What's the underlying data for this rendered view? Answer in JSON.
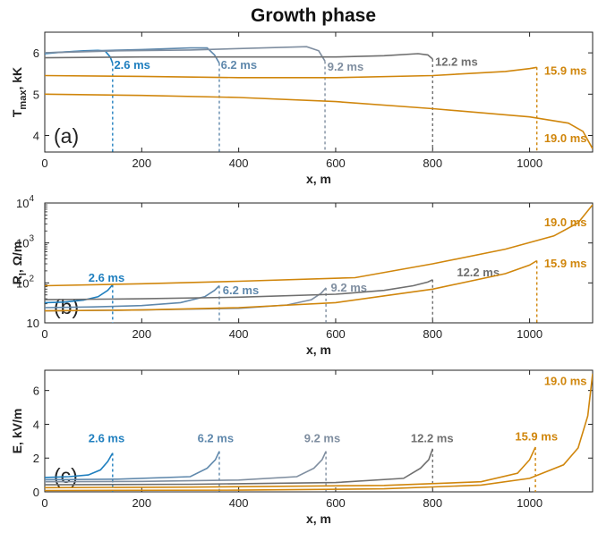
{
  "title": "Growth phase",
  "colors": {
    "blue": "#1f7fbf",
    "steel": "#5f88ac",
    "slate": "#7f8ea0",
    "gray": "#6f6f6f",
    "orange": "#d0860c"
  },
  "chart_data": [
    {
      "type": "line",
      "panel_label": "(a)",
      "xlabel": "x, m",
      "ylabel": "T_max, kK",
      "ylabel_main": "T",
      "ylabel_sub": "max",
      "ylabel_rest": ", kK",
      "xlim": [
        0,
        1130
      ],
      "ylim": [
        3.6,
        6.5
      ],
      "yscale": "linear",
      "xticks": [
        0,
        200,
        400,
        600,
        800,
        1000
      ],
      "yticks": [
        4,
        5,
        6
      ],
      "ytick_labels": [
        "4",
        "5",
        "6"
      ],
      "series": [
        {
          "name": "2.6 ms",
          "color": "#1f7fbf",
          "points": [
            [
              0,
              5.98
            ],
            [
              40,
              6.02
            ],
            [
              80,
              6.05
            ],
            [
              110,
              6.06
            ],
            [
              125,
              6.04
            ],
            [
              135,
              5.9
            ],
            [
              140,
              5.75
            ]
          ],
          "tip": [
            140,
            5.75
          ],
          "label_anchor": [
            143,
            5.72
          ]
        },
        {
          "name": "6.2 ms",
          "color": "#5f88ac",
          "points": [
            [
              0,
              6.0
            ],
            [
              100,
              6.05
            ],
            [
              200,
              6.08
            ],
            [
              300,
              6.12
            ],
            [
              335,
              6.12
            ],
            [
              350,
              5.95
            ],
            [
              360,
              5.75
            ]
          ],
          "tip": [
            360,
            5.75
          ],
          "label_anchor": [
            363,
            5.72
          ]
        },
        {
          "name": "9.2 ms",
          "color": "#7f8ea0",
          "points": [
            [
              0,
              6.0
            ],
            [
              150,
              6.05
            ],
            [
              300,
              6.07
            ],
            [
              450,
              6.12
            ],
            [
              540,
              6.15
            ],
            [
              565,
              6.05
            ],
            [
              578,
              5.8
            ]
          ],
          "tip": [
            578,
            5.8
          ],
          "label_anchor": [
            583,
            5.68
          ]
        },
        {
          "name": "12.2 ms",
          "color": "#6f6f6f",
          "points": [
            [
              0,
              5.88
            ],
            [
              200,
              5.9
            ],
            [
              400,
              5.9
            ],
            [
              600,
              5.9
            ],
            [
              700,
              5.93
            ],
            [
              770,
              5.98
            ],
            [
              790,
              5.95
            ],
            [
              800,
              5.85
            ]
          ],
          "tip": [
            800,
            5.85
          ],
          "label_anchor": [
            805,
            5.8
          ]
        },
        {
          "name": "15.9 ms",
          "color": "#d0860c",
          "points": [
            [
              0,
              5.45
            ],
            [
              200,
              5.43
            ],
            [
              400,
              5.4
            ],
            [
              600,
              5.4
            ],
            [
              800,
              5.45
            ],
            [
              950,
              5.55
            ],
            [
              1000,
              5.62
            ],
            [
              1015,
              5.65
            ]
          ],
          "tip": [
            1015,
            5.65
          ],
          "label_anchor": [
            1030,
            5.58
          ]
        },
        {
          "name": "19.0 ms",
          "color": "#d0860c",
          "points": [
            [
              0,
              5.0
            ],
            [
              200,
              4.97
            ],
            [
              400,
              4.92
            ],
            [
              600,
              4.82
            ],
            [
              800,
              4.65
            ],
            [
              1000,
              4.45
            ],
            [
              1080,
              4.3
            ],
            [
              1110,
              4.1
            ],
            [
              1130,
              3.68
            ]
          ],
          "tip": null,
          "label_anchor": [
            1030,
            3.95
          ]
        }
      ]
    },
    {
      "type": "line",
      "panel_label": "(b)",
      "xlabel": "x, m",
      "ylabel": "R_l, Ω/m",
      "ylabel_main": "R",
      "ylabel_sub": "l",
      "ylabel_rest": ", Ω/m",
      "xlim": [
        0,
        1130
      ],
      "ylim": [
        10,
        10000
      ],
      "yscale": "log",
      "xticks": [
        0,
        200,
        400,
        600,
        800,
        1000
      ],
      "yticks": [
        10,
        100,
        1000,
        10000
      ],
      "ytick_labels": [
        "10",
        "10",
        "10",
        "10"
      ],
      "ytick_exponents": [
        "",
        "2",
        "3",
        "4"
      ],
      "series": [
        {
          "name": "2.6 ms",
          "color": "#1f7fbf",
          "points": [
            [
              0,
              32
            ],
            [
              40,
              33
            ],
            [
              80,
              37
            ],
            [
              110,
              45
            ],
            [
              130,
              65
            ],
            [
              140,
              90
            ]
          ],
          "tip": [
            140,
            90
          ],
          "label_anchor": [
            90,
            140
          ]
        },
        {
          "name": "6.2 ms",
          "color": "#5f88ac",
          "points": [
            [
              0,
              24
            ],
            [
              100,
              25
            ],
            [
              200,
              27
            ],
            [
              280,
              32
            ],
            [
              330,
              45
            ],
            [
              350,
              65
            ],
            [
              360,
              85
            ]
          ],
          "tip": [
            360,
            85
          ],
          "label_anchor": [
            367,
            68
          ]
        },
        {
          "name": "9.2 ms",
          "color": "#7f8ea0",
          "points": [
            [
              0,
              20
            ],
            [
              200,
              21
            ],
            [
              400,
              23
            ],
            [
              500,
              28
            ],
            [
              550,
              38
            ],
            [
              570,
              55
            ],
            [
              580,
              75
            ]
          ],
          "tip": [
            580,
            75
          ],
          "label_anchor": [
            590,
            78
          ]
        },
        {
          "name": "12.2 ms",
          "color": "#6f6f6f",
          "points": [
            [
              0,
              38
            ],
            [
              200,
              40
            ],
            [
              400,
              44
            ],
            [
              600,
              52
            ],
            [
              700,
              65
            ],
            [
              760,
              85
            ],
            [
              790,
              105
            ],
            [
              800,
              120
            ]
          ],
          "tip": [
            800,
            120
          ],
          "label_anchor": [
            850,
            190
          ]
        },
        {
          "name": "15.9 ms",
          "color": "#d0860c",
          "points": [
            [
              0,
              20
            ],
            [
              200,
              21
            ],
            [
              400,
              24
            ],
            [
              600,
              32
            ],
            [
              800,
              70
            ],
            [
              950,
              170
            ],
            [
              1000,
              280
            ],
            [
              1015,
              360
            ]
          ],
          "tip": [
            1015,
            360
          ],
          "label_anchor": [
            1030,
            320
          ]
        },
        {
          "name": "19.0 ms",
          "color": "#d0860c",
          "points": [
            [
              0,
              85
            ],
            [
              200,
              95
            ],
            [
              400,
              110
            ],
            [
              640,
              135
            ],
            [
              800,
              300
            ],
            [
              950,
              700
            ],
            [
              1050,
              1500
            ],
            [
              1100,
              3200
            ],
            [
              1130,
              9000
            ]
          ],
          "tip": null,
          "label_anchor": [
            1030,
            3400
          ]
        }
      ]
    },
    {
      "type": "line",
      "panel_label": "(c)",
      "xlabel": "x, m",
      "ylabel": "E, kV/m",
      "ylabel_main": "E",
      "ylabel_sub": "",
      "ylabel_rest": ", kV/m",
      "xlim": [
        0,
        1130
      ],
      "ylim": [
        0,
        7.2
      ],
      "yscale": "linear",
      "xticks": [
        0,
        200,
        400,
        600,
        800,
        1000
      ],
      "yticks": [
        0,
        2,
        4,
        6
      ],
      "ytick_labels": [
        "0",
        "2",
        "4",
        "6"
      ],
      "series": [
        {
          "name": "2.6 ms",
          "color": "#1f7fbf",
          "points": [
            [
              0,
              0.85
            ],
            [
              50,
              0.9
            ],
            [
              90,
              1.0
            ],
            [
              115,
              1.3
            ],
            [
              130,
              1.8
            ],
            [
              140,
              2.3
            ]
          ],
          "tip": [
            140,
            2.3
          ],
          "label_anchor": [
            90,
            3.2
          ]
        },
        {
          "name": "6.2 ms",
          "color": "#5f88ac",
          "points": [
            [
              0,
              0.72
            ],
            [
              150,
              0.75
            ],
            [
              300,
              0.9
            ],
            [
              335,
              1.4
            ],
            [
              352,
              1.9
            ],
            [
              360,
              2.4
            ]
          ],
          "tip": [
            360,
            2.4
          ],
          "label_anchor": [
            315,
            3.2
          ]
        },
        {
          "name": "9.2 ms",
          "color": "#7f8ea0",
          "points": [
            [
              0,
              0.6
            ],
            [
              200,
              0.62
            ],
            [
              400,
              0.7
            ],
            [
              520,
              0.9
            ],
            [
              555,
              1.4
            ],
            [
              572,
              1.9
            ],
            [
              580,
              2.4
            ]
          ],
          "tip": [
            580,
            2.4
          ],
          "label_anchor": [
            535,
            3.2
          ]
        },
        {
          "name": "12.2 ms",
          "color": "#6f6f6f",
          "points": [
            [
              0,
              0.42
            ],
            [
              300,
              0.45
            ],
            [
              600,
              0.55
            ],
            [
              740,
              0.8
            ],
            [
              775,
              1.4
            ],
            [
              792,
              1.9
            ],
            [
              800,
              2.55
            ]
          ],
          "tip": [
            800,
            2.55
          ],
          "label_anchor": [
            755,
            3.2
          ]
        },
        {
          "name": "15.9 ms",
          "color": "#d0860c",
          "points": [
            [
              0,
              0.25
            ],
            [
              300,
              0.28
            ],
            [
              700,
              0.38
            ],
            [
              900,
              0.6
            ],
            [
              975,
              1.1
            ],
            [
              1000,
              1.9
            ],
            [
              1012,
              2.65
            ]
          ],
          "tip": [
            1012,
            2.65
          ],
          "label_anchor": [
            970,
            3.3
          ]
        },
        {
          "name": "19.0 ms",
          "color": "#d0860c",
          "points": [
            [
              0,
              0.08
            ],
            [
              400,
              0.1
            ],
            [
              700,
              0.18
            ],
            [
              900,
              0.4
            ],
            [
              1000,
              0.8
            ],
            [
              1070,
              1.6
            ],
            [
              1100,
              2.6
            ],
            [
              1120,
              4.5
            ],
            [
              1130,
              7.0
            ]
          ],
          "tip": null,
          "label_anchor": [
            1030,
            6.6
          ]
        }
      ]
    }
  ]
}
